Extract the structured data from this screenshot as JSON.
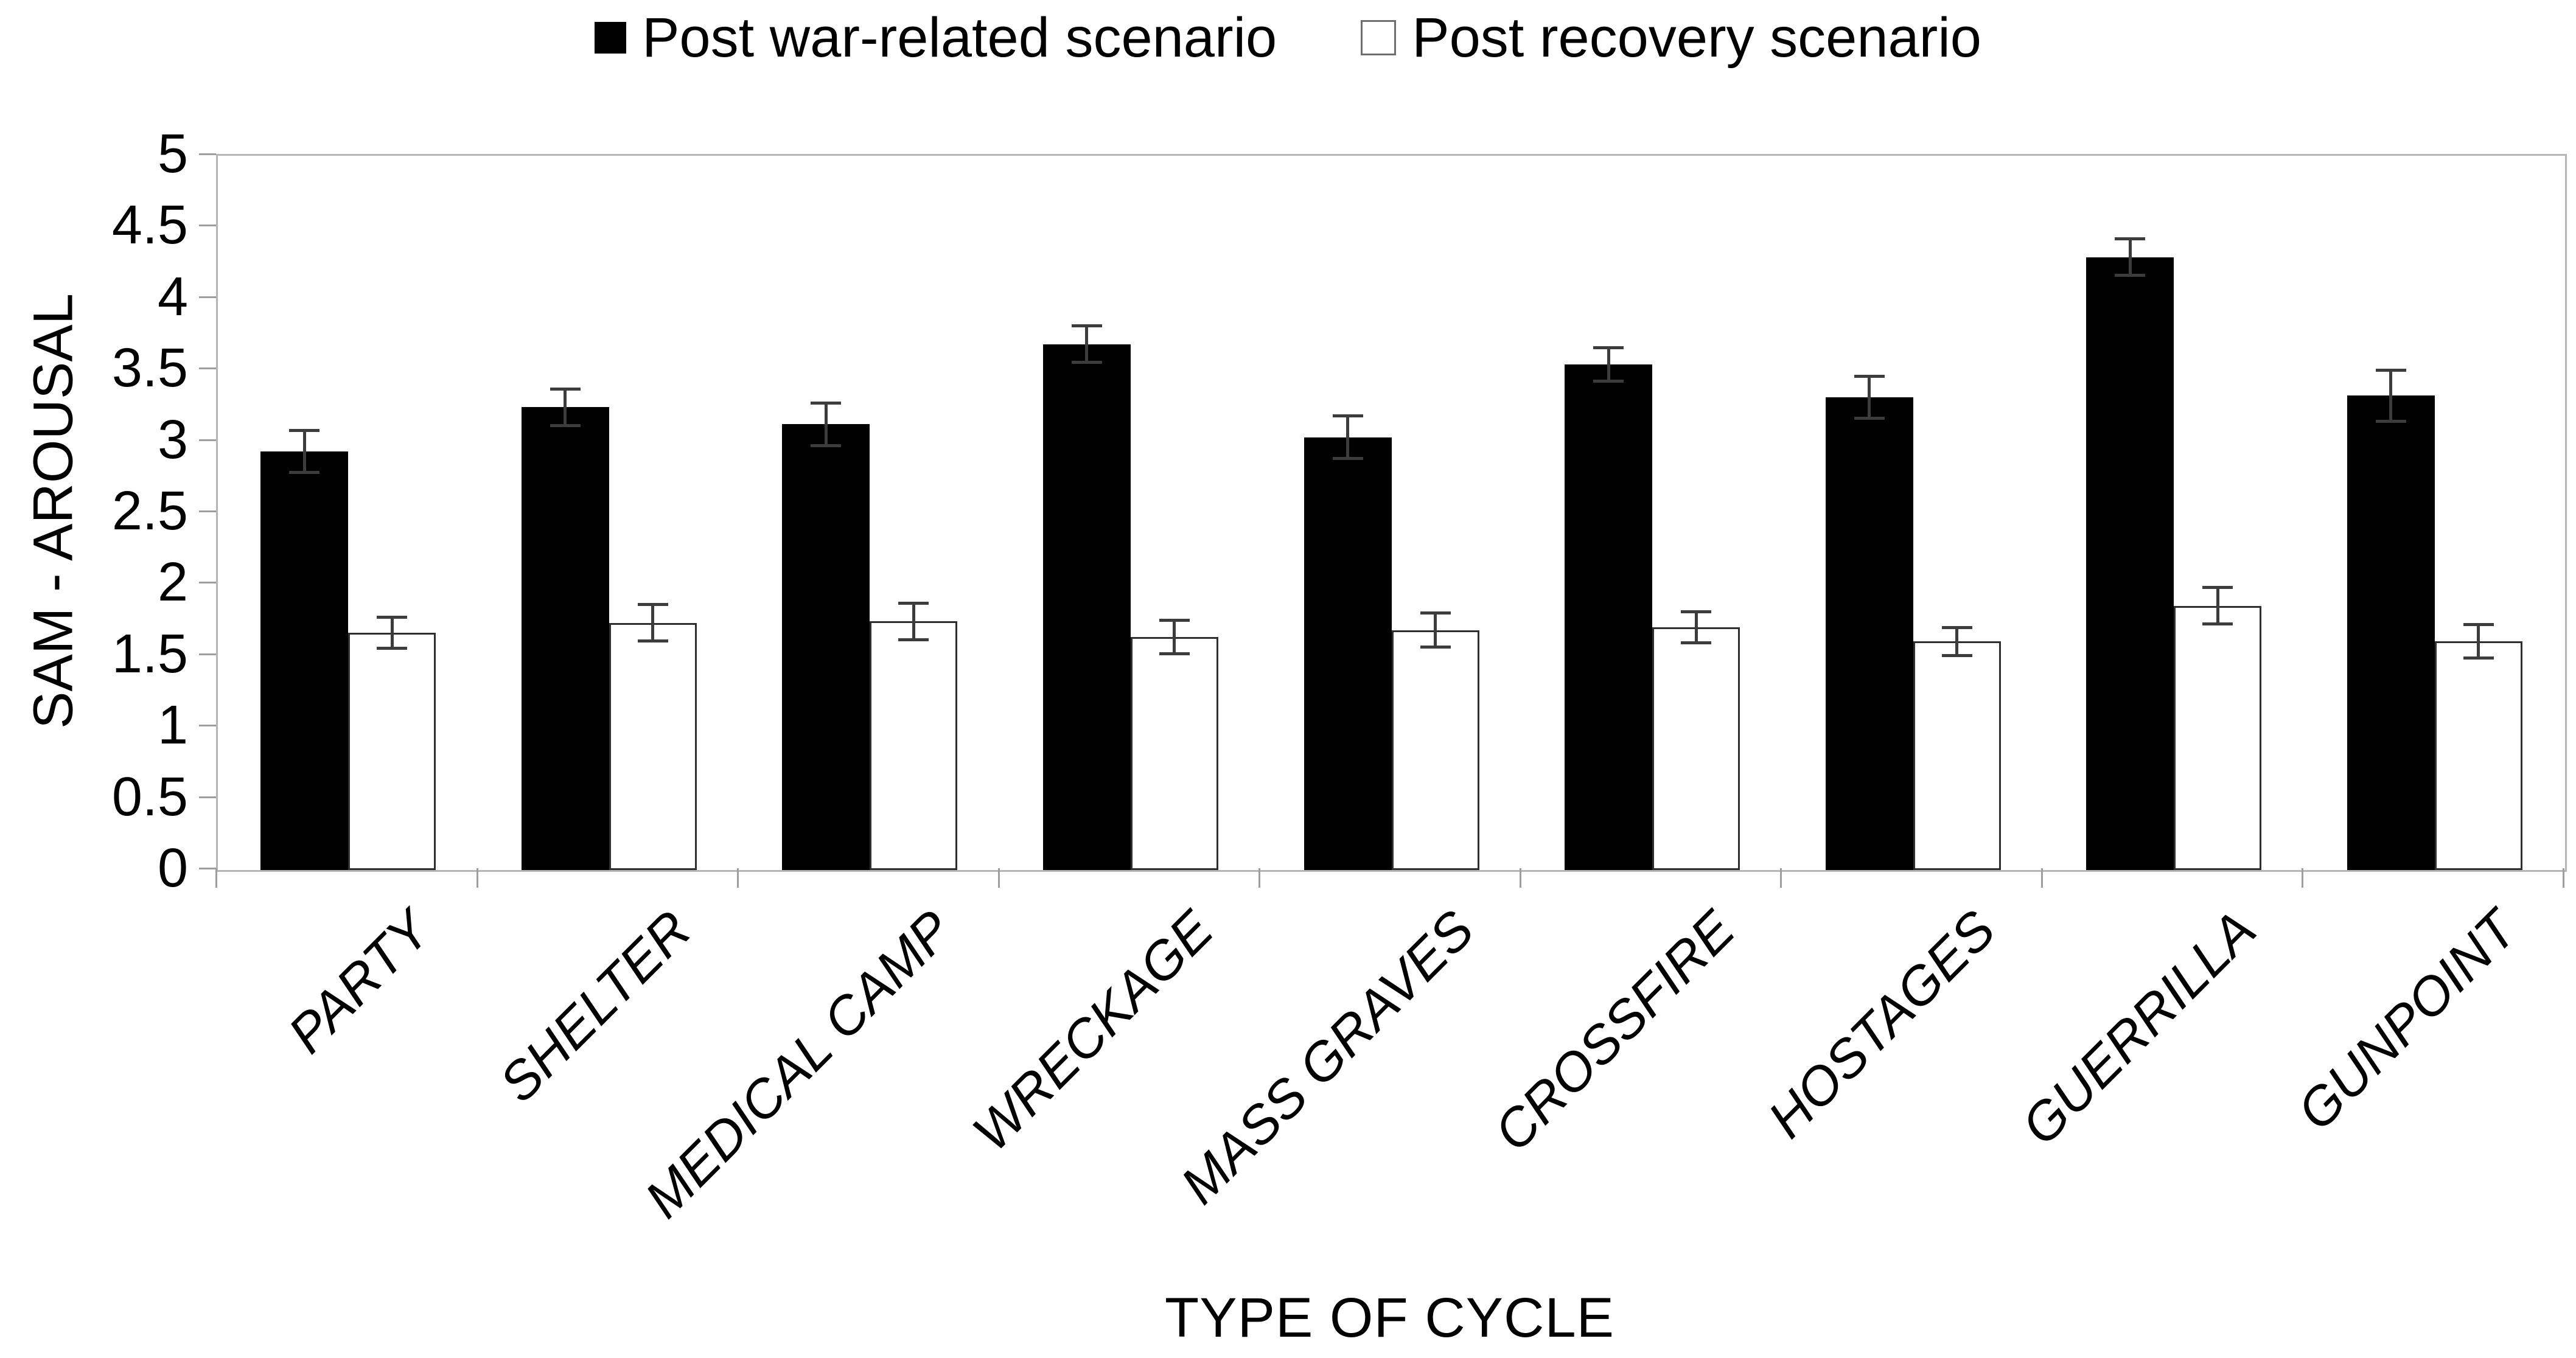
{
  "colors": {
    "bar_fill_series1": "#000000",
    "bar_fill_series2": "#ffffff",
    "bar_outline": "#2e2e2e",
    "error_bar": "#3c3c3c",
    "axis_frame": "#b5b5b5",
    "axis_tick": "#9e9e9e",
    "text": "#000000",
    "background": "#ffffff"
  },
  "legend": {
    "items": [
      {
        "label": "Post war-related scenario",
        "marker": "filled-black-square"
      },
      {
        "label": "Post recovery scenario",
        "marker": "outlined-white-square"
      }
    ]
  },
  "chart_data": {
    "type": "bar",
    "title": "",
    "xlabel": "TYPE OF CYCLE",
    "ylabel": "SAM - AROUSAL",
    "ylim": [
      0,
      5
    ],
    "ytick_step": 0.5,
    "ytick_labels": [
      "0",
      "0.5",
      "1",
      "1.5",
      "2",
      "2.5",
      "3",
      "3.5",
      "4",
      "4.5",
      "5"
    ],
    "grid": false,
    "legend_position": "top-center",
    "bar_style": "grouped pairs, error bars with caps",
    "categories": [
      "PARTY",
      "SHELTER",
      "MEDICAL CAMP",
      "WRECKAGE",
      "MASS GRAVES",
      "CROSSFIRE",
      "HOSTAGES",
      "GUERRILLA",
      "GUNPOINT"
    ],
    "series": [
      {
        "name": "Post war-related scenario",
        "fill": "#000000",
        "values": [
          2.93,
          3.24,
          3.12,
          3.68,
          3.03,
          3.54,
          3.31,
          4.29,
          3.32
        ],
        "errors": [
          0.15,
          0.13,
          0.15,
          0.13,
          0.15,
          0.12,
          0.15,
          0.13,
          0.18
        ]
      },
      {
        "name": "Post recovery scenario",
        "fill": "#ffffff",
        "values": [
          1.66,
          1.73,
          1.74,
          1.63,
          1.68,
          1.7,
          1.6,
          1.85,
          1.6
        ],
        "errors": [
          0.11,
          0.13,
          0.13,
          0.12,
          0.12,
          0.11,
          0.1,
          0.13,
          0.12
        ]
      }
    ]
  }
}
